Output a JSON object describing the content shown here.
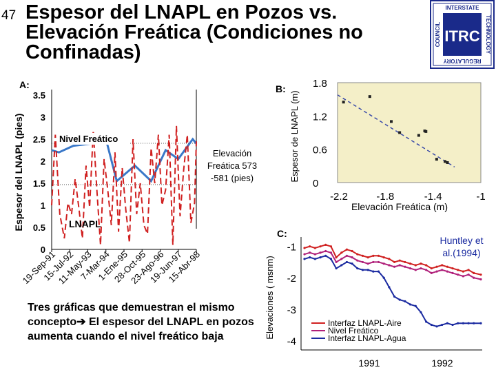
{
  "slide": {
    "number": "47",
    "title_line1": "Espesor del LNAPL en Pozos vs.",
    "title_line2": "Elevación Freática (Condiciones no",
    "title_line3": "Confinadas)",
    "logo": {
      "top": "INTERSTATE",
      "left": "COUNCIL",
      "right": "TECHNOLOGY",
      "bottom": "REGULATORY",
      "mark": "ITRC",
      "color": "#1a2a8a"
    },
    "note": "Tres gráficas que demuestran el mismo concepto",
    "note_arrow": "➔",
    "note_rest": " El espesor del LNAPL en pozos aumenta cuando el nivel freático baja"
  },
  "chart_data": [
    {
      "id": "A",
      "type": "line",
      "panel_label": "A:",
      "ylabel": "Espesor del LNAPL (pies)",
      "ylim": [
        0,
        3.5
      ],
      "yticks": [
        "3.5",
        "3",
        "2.5",
        "2",
        "1.5",
        "1",
        "0.5",
        "0"
      ],
      "categories": [
        "19-Sep-91",
        "15-Jul-92",
        "11-May-93",
        "7-Mar-94",
        "1-Ene-95",
        "28-Oct-95",
        "23-Ago-96",
        "19-Jun-97",
        "15-Abr-98"
      ],
      "series": [
        {
          "name": "Nivel Freático",
          "color": "#3a78c8",
          "style": "solid",
          "x": [
            0,
            0.4,
            1.2,
            2.2,
            3.0,
            3.6,
            4.6,
            5.5,
            6.3,
            7.0,
            7.8,
            8.0
          ],
          "values": [
            2.25,
            2.2,
            2.35,
            2.4,
            2.5,
            1.55,
            1.9,
            1.55,
            2.25,
            2.05,
            2.5,
            2.4
          ]
        },
        {
          "name": "LNAPL",
          "color": "#d02020",
          "style": "dashed",
          "x": [
            0.0,
            0.2,
            0.45,
            0.7,
            0.9,
            1.1,
            1.3,
            1.5,
            1.7,
            1.9,
            2.1,
            2.3,
            2.5,
            2.7,
            2.9,
            3.1,
            3.3,
            3.5,
            3.7,
            3.9,
            4.1,
            4.3,
            4.5,
            4.7,
            4.9,
            5.1,
            5.3,
            5.5,
            5.7,
            5.9,
            6.1,
            6.3,
            6.5,
            6.7,
            6.9,
            7.1,
            7.3,
            7.5,
            7.7,
            7.9,
            8.0
          ],
          "values": [
            1.0,
            2.6,
            0.8,
            0.25,
            1.05,
            0.8,
            1.6,
            0.95,
            0.25,
            1.9,
            0.95,
            2.7,
            1.35,
            0.1,
            2.05,
            1.35,
            0.55,
            2.2,
            0.4,
            1.85,
            0.9,
            0.15,
            2.5,
            0.8,
            1.5,
            0.55,
            0.35,
            2.3,
            1.5,
            2.6,
            1.0,
            1.35,
            2.6,
            0.1,
            2.8,
            0.75,
            1.8,
            2.6,
            0.6,
            1.05,
            2.45
          ]
        }
      ],
      "hlines": [
        2.5,
        1.5
      ],
      "annotation": "Elevación Freática 573 -581 (pies)",
      "annotation_line1": "Elevación",
      "annotation_line2": "Freática 573",
      "annotation_line3": "-581 (pies)",
      "label_nivel": "Nivel Freático",
      "label_lnapl": "LNAPL"
    },
    {
      "id": "B",
      "type": "scatter",
      "panel_label": "B:",
      "ylabel": "Espesor de LNAPL (m)",
      "xlabel": "Elevación Freática (m)",
      "xlim": [
        -2.2,
        -1.0
      ],
      "ylim": [
        0,
        1.8
      ],
      "xticks": [
        "-2.2",
        "-1.8",
        "-1.4",
        "-1"
      ],
      "yticks": [
        "1.8",
        "1.2",
        "0.6",
        "0"
      ],
      "plot_bg": "#f4efc8",
      "points": [
        {
          "x": -2.15,
          "y": 1.45
        },
        {
          "x": -1.93,
          "y": 1.55
        },
        {
          "x": -1.75,
          "y": 1.1
        },
        {
          "x": -1.68,
          "y": 0.9
        },
        {
          "x": -1.52,
          "y": 0.85
        },
        {
          "x": -1.47,
          "y": 0.93
        },
        {
          "x": -1.46,
          "y": 0.92
        },
        {
          "x": -1.37,
          "y": 0.42
        },
        {
          "x": -1.3,
          "y": 0.38
        },
        {
          "x": -1.28,
          "y": 0.36
        }
      ],
      "trend": [
        {
          "x": -2.2,
          "y": 1.58
        },
        {
          "x": -1.22,
          "y": 0.28
        }
      ]
    },
    {
      "id": "C",
      "type": "line",
      "panel_label": "C:",
      "ylabel": "Elevaciones ( msnm)",
      "ylim": [
        -4.3,
        -0.7
      ],
      "yticks": [
        "-1",
        "-2",
        "-3",
        "-4"
      ],
      "xticks": [
        "1991",
        "1992"
      ],
      "source": "Huntley et al.(1994)",
      "series": [
        {
          "name": "Interfaz LNAPL-Aire",
          "color": "#d02020",
          "x": [
            0,
            3,
            6,
            9,
            12,
            15,
            18,
            21,
            24,
            27,
            30,
            33,
            36,
            39,
            42,
            45,
            48,
            51,
            54,
            57,
            60,
            63,
            66,
            69,
            72,
            75,
            78,
            81,
            84,
            87,
            90,
            93,
            96,
            100
          ],
          "values": [
            -1.05,
            -1.0,
            -1.05,
            -1.0,
            -0.95,
            -1.0,
            -1.35,
            -1.2,
            -1.1,
            -1.15,
            -1.25,
            -1.3,
            -1.35,
            -1.3,
            -1.3,
            -1.35,
            -1.4,
            -1.5,
            -1.45,
            -1.5,
            -1.55,
            -1.6,
            -1.55,
            -1.6,
            -1.7,
            -1.65,
            -1.6,
            -1.65,
            -1.7,
            -1.75,
            -1.8,
            -1.75,
            -1.85,
            -1.9
          ]
        },
        {
          "name": "Nivel Freático",
          "color": "#b0207a",
          "x": [
            0,
            3,
            6,
            9,
            12,
            15,
            18,
            21,
            24,
            27,
            30,
            33,
            36,
            39,
            42,
            45,
            48,
            51,
            54,
            57,
            60,
            63,
            66,
            69,
            72,
            75,
            78,
            81,
            84,
            87,
            90,
            93,
            96,
            100
          ],
          "values": [
            -1.25,
            -1.2,
            -1.25,
            -1.2,
            -1.15,
            -1.2,
            -1.5,
            -1.4,
            -1.3,
            -1.35,
            -1.45,
            -1.5,
            -1.55,
            -1.5,
            -1.5,
            -1.55,
            -1.6,
            -1.65,
            -1.6,
            -1.65,
            -1.7,
            -1.75,
            -1.7,
            -1.75,
            -1.85,
            -1.8,
            -1.75,
            -1.8,
            -1.85,
            -1.9,
            -1.95,
            -1.9,
            -2.0,
            -2.05
          ]
        },
        {
          "name": "Interfaz LNAPL-Agua",
          "color": "#1a2aa0",
          "x": [
            0,
            3,
            6,
            9,
            12,
            15,
            18,
            21,
            24,
            27,
            30,
            33,
            36,
            39,
            42,
            45,
            48,
            51,
            54,
            57,
            60,
            63,
            66,
            69,
            72,
            75,
            78,
            81,
            84,
            87,
            90,
            93,
            96,
            100
          ],
          "values": [
            -1.4,
            -1.35,
            -1.4,
            -1.35,
            -1.3,
            -1.4,
            -1.7,
            -1.6,
            -1.5,
            -1.55,
            -1.7,
            -1.75,
            -1.75,
            -1.8,
            -1.8,
            -2.0,
            -2.3,
            -2.6,
            -2.7,
            -2.75,
            -2.85,
            -2.9,
            -3.1,
            -3.4,
            -3.5,
            -3.55,
            -3.5,
            -3.45,
            -3.5,
            -3.45,
            -3.45,
            -3.45,
            -3.45,
            -3.45
          ]
        }
      ]
    }
  ]
}
